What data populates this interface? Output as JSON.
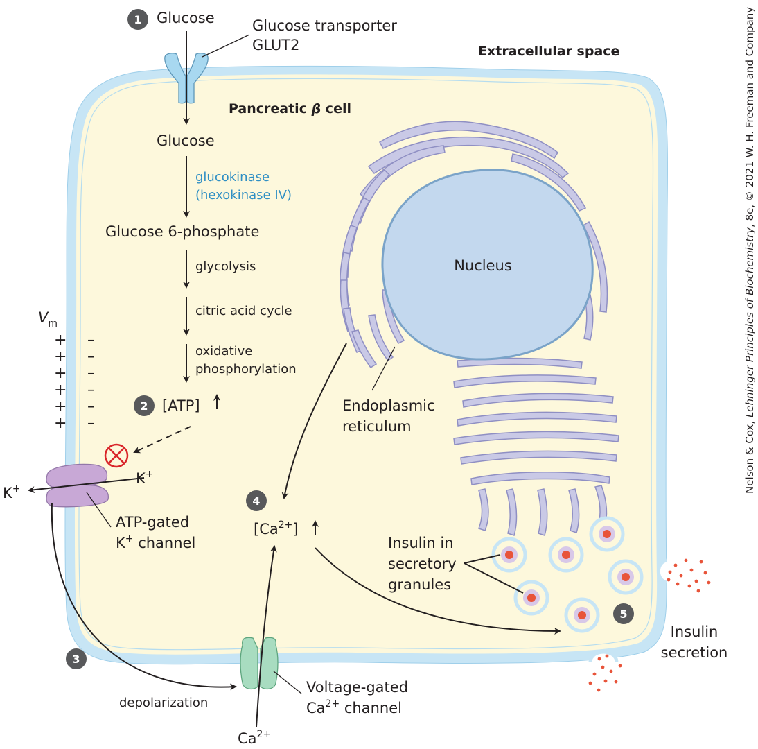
{
  "labels": {
    "extracellular": "Extracellular space",
    "cell_title_prefix": "Pancreatic ",
    "cell_title_beta": "β",
    "cell_title_suffix": " cell",
    "glucose_outside": "Glucose",
    "transporter_line1": "Glucose transporter",
    "transporter_line2": "GLUT2",
    "glucose_inside": "Glucose",
    "enzyme_line1": "glucokinase",
    "enzyme_line2": "(hexokinase IV)",
    "g6p": "Glucose 6-phosphate",
    "glycolysis": "glycolysis",
    "cac": "citric acid cycle",
    "oxphos_line1": "oxidative",
    "oxphos_line2": "phosphorylation",
    "atp": "[ATP]",
    "nucleus": "Nucleus",
    "er_line1": "Endoplasmic",
    "er_line2": "reticulum",
    "vm": "V",
    "vm_sub": "m",
    "plus": "+",
    "minus": "–",
    "k_inside": "K",
    "k_outside": "K",
    "k_sup": "+",
    "katp_line1": "ATP-gated",
    "katp_line2_prefix": "K",
    "katp_line2_sup": "+",
    "katp_line2_suffix": " channel",
    "ca_inside_prefix": "[Ca",
    "ca_sup": "2+",
    "ca_inside_suffix": "]",
    "ca_outside": "Ca",
    "vgcc_line1": "Voltage-gated",
    "vgcc_line2_prefix": "Ca",
    "vgcc_line2_sup": "2+",
    "vgcc_line2_suffix": " channel",
    "depolarization": "depolarization",
    "granules_line1": "Insulin in",
    "granules_line2": "secretory",
    "granules_line3": "granules",
    "secretion_line1": "Insulin",
    "secretion_line2": "secretion",
    "credit_prefix": "Nelson & Cox, ",
    "credit_title": "Lehninger Principles of Biochemistry",
    "credit_suffix": ", 8e, © 2021 W. H. Freeman and Company"
  },
  "steps": [
    "1",
    "2",
    "3",
    "4",
    "5"
  ],
  "colors": {
    "cytoplasm": "#fdf8dc",
    "membrane": "#c7e5f5",
    "organelle": "#c9c9e6",
    "organelle_stroke": "#8f8fc3",
    "glut2": "#a8d8f0",
    "katp": "#c8a8d6",
    "vgcc": "#a8dcc0",
    "insulin": "#e8543a",
    "inhibit": "#d9262a",
    "step_badge": "#58595b"
  }
}
